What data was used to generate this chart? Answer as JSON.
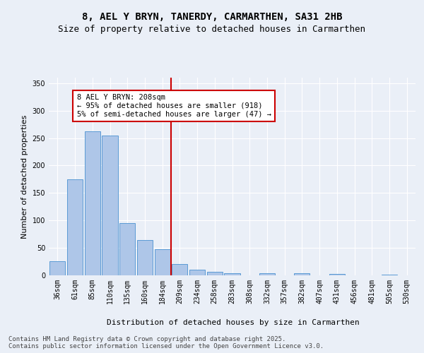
{
  "title": "8, AEL Y BRYN, TANERDY, CARMARTHEN, SA31 2HB",
  "subtitle": "Size of property relative to detached houses in Carmarthen",
  "xlabel": "Distribution of detached houses by size in Carmarthen",
  "ylabel": "Number of detached properties",
  "categories": [
    "36sqm",
    "61sqm",
    "85sqm",
    "110sqm",
    "135sqm",
    "160sqm",
    "184sqm",
    "209sqm",
    "234sqm",
    "258sqm",
    "283sqm",
    "308sqm",
    "332sqm",
    "357sqm",
    "382sqm",
    "407sqm",
    "431sqm",
    "456sqm",
    "481sqm",
    "505sqm",
    "530sqm"
  ],
  "values": [
    26,
    175,
    262,
    255,
    95,
    64,
    47,
    20,
    10,
    7,
    4,
    0,
    4,
    0,
    4,
    0,
    3,
    0,
    0,
    1,
    0
  ],
  "bar_color": "#aec6e8",
  "bar_edge_color": "#5b9bd5",
  "vline_color": "#cc0000",
  "vline_bar_index": 7,
  "annotation_text": "8 AEL Y BRYN: 208sqm\n← 95% of detached houses are smaller (918)\n5% of semi-detached houses are larger (47) →",
  "annotation_box_color": "#ffffff",
  "annotation_box_edge": "#cc0000",
  "ylim": [
    0,
    360
  ],
  "yticks": [
    0,
    50,
    100,
    150,
    200,
    250,
    300,
    350
  ],
  "bg_color": "#eaeff7",
  "plot_bg_color": "#eaeff7",
  "footer": "Contains HM Land Registry data © Crown copyright and database right 2025.\nContains public sector information licensed under the Open Government Licence v3.0.",
  "title_fontsize": 10,
  "subtitle_fontsize": 9,
  "axis_label_fontsize": 8,
  "tick_fontsize": 7,
  "annotation_fontsize": 7.5,
  "footer_fontsize": 6.5
}
